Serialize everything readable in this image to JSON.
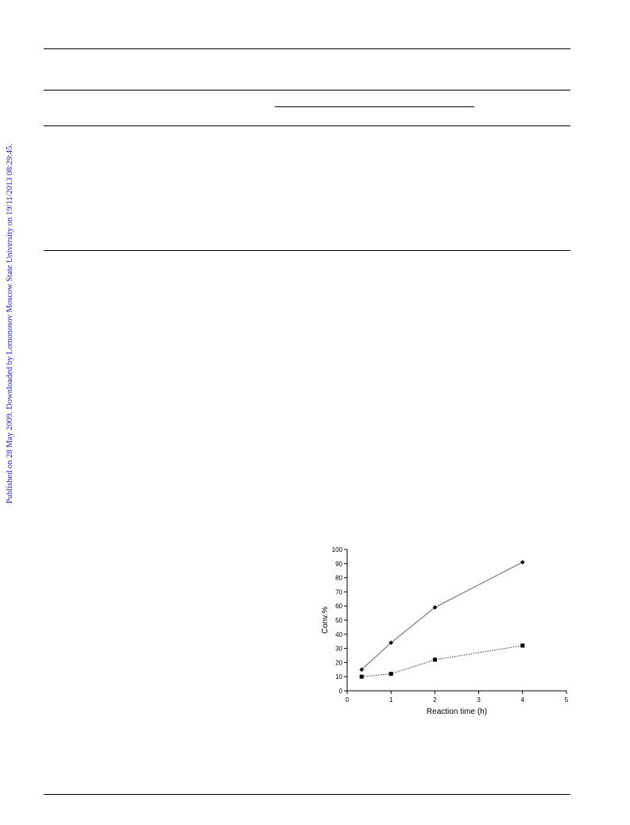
{
  "watermark": {
    "text": "Published on 28 May 2009. Downloaded by Lomonosov Moscow State University on 19/11/2013 08:29:45."
  },
  "chart_data": {
    "type": "line",
    "title": "",
    "xlabel": "Reaction time (h)",
    "ylabel": "Conv.%",
    "xlim": [
      0,
      5
    ],
    "ylim": [
      0,
      100
    ],
    "x_ticks": [
      "0",
      "1",
      "2",
      "3",
      "4",
      "5"
    ],
    "y_ticks": [
      "0",
      "10",
      "20",
      "30",
      "40",
      "50",
      "60",
      "70",
      "80",
      "90",
      "100"
    ],
    "grid": false,
    "legend": "none",
    "series": [
      {
        "marker": "diamond",
        "line": "solid",
        "color": "#8a8a8a",
        "points": [
          [
            0.33,
            15
          ],
          [
            1,
            34
          ],
          [
            2,
            59
          ],
          [
            4,
            91
          ]
        ]
      },
      {
        "marker": "square",
        "line": "dotted",
        "color": "#555555",
        "points": [
          [
            0.33,
            10
          ],
          [
            1,
            12
          ],
          [
            2,
            22
          ],
          [
            4,
            32
          ]
        ]
      }
    ]
  }
}
